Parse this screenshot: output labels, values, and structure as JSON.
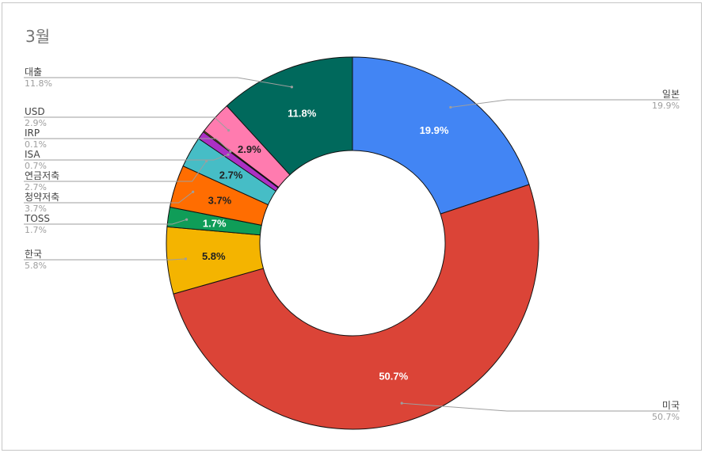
{
  "chart_data": {
    "type": "pie",
    "donut": true,
    "title": "3월",
    "legend": "labels with leader lines",
    "slices": [
      {
        "label": "일본",
        "value": 19.9,
        "pct_text": "19.9%",
        "color": "#4285f4",
        "text_color": "#ffffff"
      },
      {
        "label": "미국",
        "value": 50.7,
        "pct_text": "50.7%",
        "color": "#db4437",
        "text_color": "#ffffff"
      },
      {
        "label": "한국",
        "value": 5.8,
        "pct_text": "5.8%",
        "color": "#f4b400",
        "text_color": "#222222"
      },
      {
        "label": "TOSS",
        "value": 1.7,
        "pct_text": "1.7%",
        "color": "#0f9d58",
        "text_color": "#ffffff"
      },
      {
        "label": "청약저축",
        "value": 3.7,
        "pct_text": "3.7%",
        "color": "#ff6d01",
        "text_color": "#222222"
      },
      {
        "label": "연금저축",
        "value": 2.7,
        "pct_text": "2.7%",
        "color": "#46bdc6",
        "text_color": "#222222"
      },
      {
        "label": "ISA",
        "value": 0.7,
        "pct_text": "0.7%",
        "color": "#ab30c4",
        "text_color": "#222222"
      },
      {
        "label": "IRP",
        "value": 0.1,
        "pct_text": "0.1%",
        "color": "#c6a716",
        "text_color": "#222222"
      },
      {
        "label": "USD",
        "value": 2.9,
        "pct_text": "2.9%",
        "color": "#ff7baf",
        "text_color": "#222222"
      },
      {
        "label": "대출",
        "value": 11.8,
        "pct_text": "11.8%",
        "color": "#00695c",
        "text_color": "#ffffff"
      }
    ]
  }
}
